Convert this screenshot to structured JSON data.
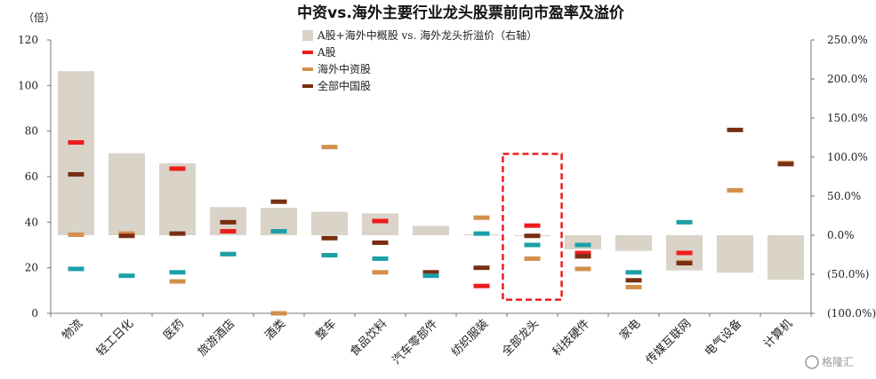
{
  "chart_data": {
    "type": "bar",
    "title": "中资vs.海外主要行业龙头股票前向市盈率及溢价",
    "left_unit": "（倍）",
    "left_ticks": [
      "0",
      "20",
      "40",
      "60",
      "80",
      "100",
      "120"
    ],
    "right_ticks": [
      "(100.0%)",
      "(50.0%)",
      "0.0%",
      "50.0%",
      "100.0%",
      "150.0%",
      "200.0%",
      "250.0%"
    ],
    "ylim_left": [
      0,
      120
    ],
    "ylim_right": [
      -100,
      250
    ],
    "categories": [
      "物流",
      "轻工日化",
      "医药",
      "旅游酒店",
      "酒类",
      "整车",
      "食品饮料",
      "汽车零部件",
      "纺织服装",
      "全部龙头",
      "科技硬件",
      "家电",
      "传媒互联网",
      "电气设备",
      "计算机"
    ],
    "bar_series": {
      "name": "A股+海外中概股 vs. 海外龙头折溢价（右轴）",
      "axis": "right",
      "color": "#d9d3c8",
      "values": [
        210,
        105,
        92,
        36,
        35,
        30,
        28,
        12,
        1,
        0,
        -18,
        -20,
        -45,
        -48,
        -57
      ]
    },
    "marker_series": [
      {
        "name": "A股",
        "color": "#ee1c1c",
        "values": [
          75,
          null,
          63.5,
          36,
          null,
          null,
          40.5,
          null,
          12,
          38.5,
          26.5,
          null,
          26.5,
          null,
          null
        ]
      },
      {
        "name": "海外中资股",
        "color": "#d38f4c",
        "values": [
          34.5,
          35,
          14,
          26,
          0,
          73,
          18,
          17,
          42,
          24,
          19.5,
          11.5,
          22.5,
          54,
          66
        ]
      },
      {
        "name": "全部中国股",
        "color": "#7a2e12",
        "values": [
          61,
          34,
          35,
          40,
          49,
          33,
          31,
          18,
          20,
          34,
          25,
          14.5,
          22,
          80.5,
          65.5
        ]
      },
      {
        "name": "",
        "color": "#1aa0a6",
        "values": [
          19.5,
          16.5,
          18,
          26,
          36,
          25.5,
          24,
          16.5,
          35,
          30,
          30,
          18,
          40,
          null,
          null
        ]
      }
    ],
    "legend_position": "top-center",
    "highlight_category": "全部龙头",
    "highlight_color": "#ee1c1c"
  },
  "watermark": "格隆汇"
}
